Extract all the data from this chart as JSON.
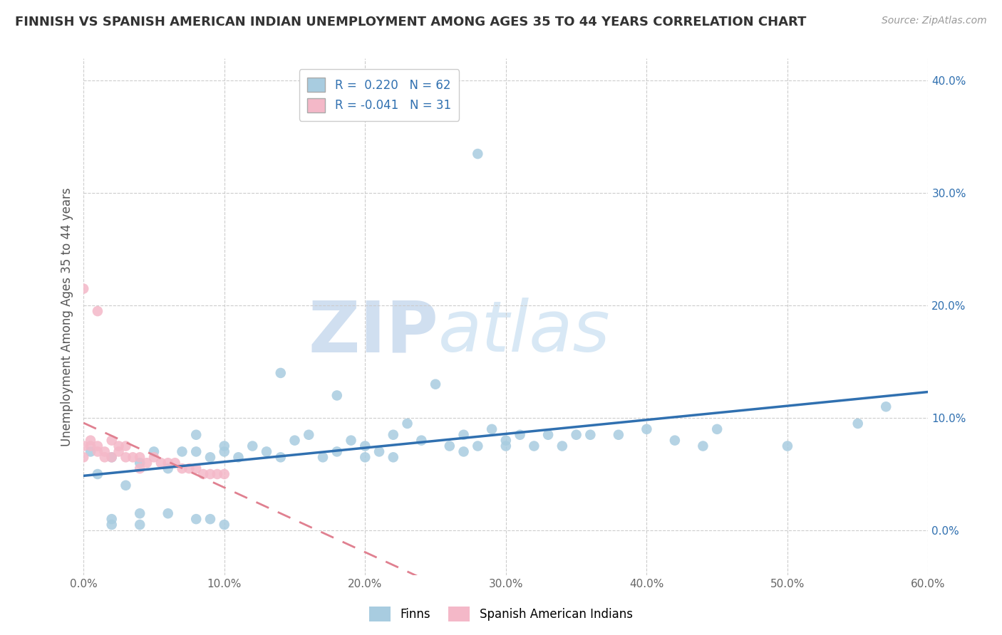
{
  "title": "FINNISH VS SPANISH AMERICAN INDIAN UNEMPLOYMENT AMONG AGES 35 TO 44 YEARS CORRELATION CHART",
  "source": "Source: ZipAtlas.com",
  "ylabel": "Unemployment Among Ages 35 to 44 years",
  "xlim": [
    0.0,
    0.6
  ],
  "ylim": [
    -0.04,
    0.42
  ],
  "x_ticks": [
    0.0,
    0.1,
    0.2,
    0.3,
    0.4,
    0.5,
    0.6
  ],
  "x_tick_labels": [
    "0.0%",
    "10.0%",
    "20.0%",
    "30.0%",
    "40.0%",
    "50.0%",
    "60.0%"
  ],
  "y_ticks": [
    0.0,
    0.1,
    0.2,
    0.3,
    0.4
  ],
  "y_tick_labels": [
    "0.0%",
    "10.0%",
    "20.0%",
    "30.0%",
    "40.0%"
  ],
  "blue_color": "#a8cce0",
  "pink_color": "#f4b8c8",
  "blue_line_color": "#3070b0",
  "pink_line_color": "#e08090",
  "R_blue": 0.22,
  "N_blue": 62,
  "R_pink": -0.041,
  "N_pink": 31,
  "legend_label_blue": "Finns",
  "legend_label_pink": "Spanish American Indians",
  "watermark_ZIP": "ZIP",
  "watermark_atlas": "atlas",
  "background_color": "#ffffff",
  "blue_scatter_x": [
    0.005,
    0.01,
    0.02,
    0.02,
    0.02,
    0.03,
    0.04,
    0.04,
    0.04,
    0.05,
    0.06,
    0.06,
    0.07,
    0.08,
    0.08,
    0.08,
    0.09,
    0.09,
    0.1,
    0.1,
    0.1,
    0.11,
    0.12,
    0.13,
    0.14,
    0.14,
    0.15,
    0.16,
    0.17,
    0.18,
    0.18,
    0.19,
    0.2,
    0.2,
    0.21,
    0.22,
    0.22,
    0.23,
    0.24,
    0.25,
    0.26,
    0.27,
    0.27,
    0.28,
    0.29,
    0.3,
    0.3,
    0.31,
    0.32,
    0.33,
    0.34,
    0.35,
    0.36,
    0.38,
    0.4,
    0.42,
    0.44,
    0.45,
    0.5,
    0.55,
    0.57,
    0.28
  ],
  "blue_scatter_y": [
    0.07,
    0.05,
    0.065,
    0.01,
    0.005,
    0.04,
    0.06,
    0.015,
    0.005,
    0.07,
    0.055,
    0.015,
    0.07,
    0.085,
    0.07,
    0.01,
    0.065,
    0.01,
    0.075,
    0.07,
    0.005,
    0.065,
    0.075,
    0.07,
    0.14,
    0.065,
    0.08,
    0.085,
    0.065,
    0.12,
    0.07,
    0.08,
    0.075,
    0.065,
    0.07,
    0.065,
    0.085,
    0.095,
    0.08,
    0.13,
    0.075,
    0.085,
    0.07,
    0.075,
    0.09,
    0.075,
    0.08,
    0.085,
    0.075,
    0.085,
    0.075,
    0.085,
    0.085,
    0.085,
    0.09,
    0.08,
    0.075,
    0.09,
    0.075,
    0.095,
    0.11,
    0.335
  ],
  "pink_scatter_x": [
    0.0,
    0.0,
    0.005,
    0.005,
    0.01,
    0.01,
    0.015,
    0.015,
    0.02,
    0.02,
    0.025,
    0.025,
    0.03,
    0.03,
    0.035,
    0.04,
    0.04,
    0.045,
    0.05,
    0.055,
    0.06,
    0.065,
    0.07,
    0.075,
    0.08,
    0.085,
    0.09,
    0.095,
    0.1,
    0.0,
    0.01
  ],
  "pink_scatter_y": [
    0.065,
    0.075,
    0.075,
    0.08,
    0.07,
    0.075,
    0.07,
    0.065,
    0.08,
    0.065,
    0.07,
    0.075,
    0.075,
    0.065,
    0.065,
    0.065,
    0.055,
    0.06,
    0.065,
    0.06,
    0.06,
    0.06,
    0.055,
    0.055,
    0.055,
    0.05,
    0.05,
    0.05,
    0.05,
    0.215,
    0.195
  ],
  "title_fontsize": 13,
  "source_fontsize": 10,
  "tick_fontsize": 11,
  "ylabel_fontsize": 12
}
